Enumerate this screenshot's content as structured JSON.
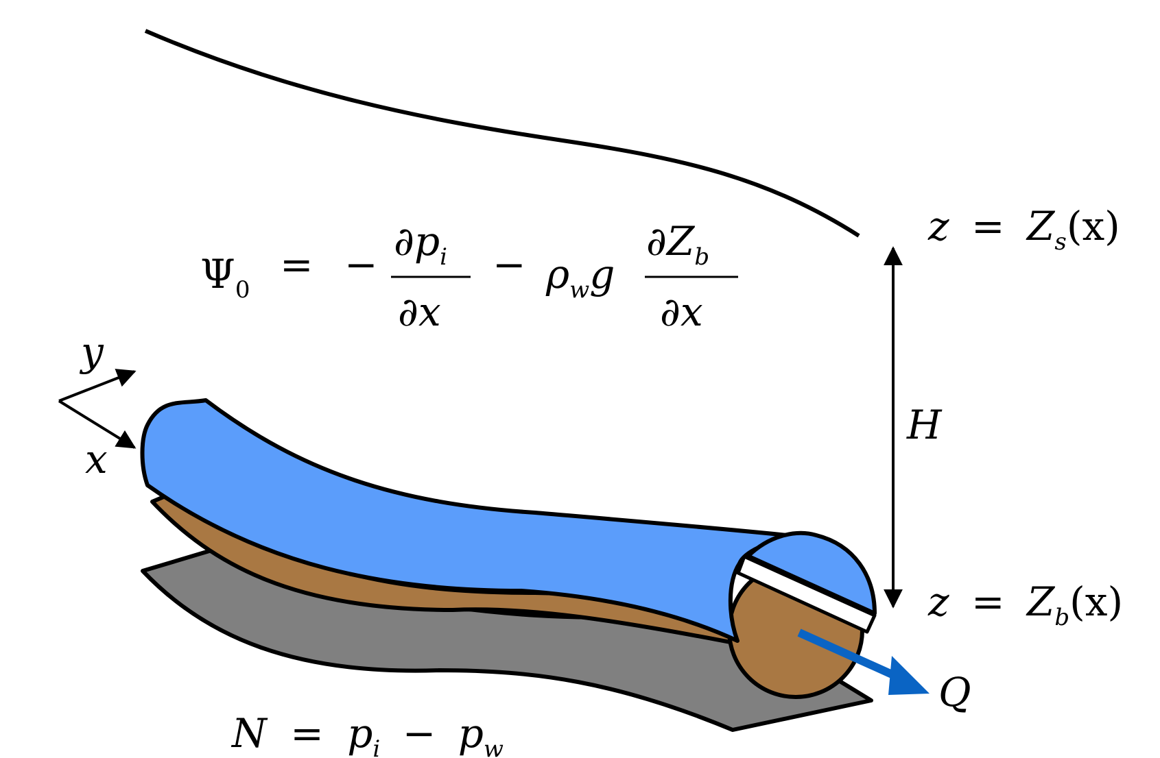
{
  "labels": {
    "surface_eq": {
      "lhs": "z",
      "eq": "=",
      "fn": "Z",
      "sub": "s",
      "arg": "(x)"
    },
    "bed_eq": {
      "lhs": "z",
      "eq": "=",
      "fn": "Z",
      "sub": "b",
      "arg": "(x)"
    },
    "thickness": "H",
    "discharge": "Q",
    "axis_x": "x",
    "axis_y": "y",
    "psi_lhs": "Ψ",
    "psi_lhs_sub": "0",
    "psi_eq": "=",
    "psi_minus1": "−",
    "psi_frac1_num_d": "∂",
    "psi_frac1_num_var": "p",
    "psi_frac1_num_sub": "i",
    "psi_frac1_den": "∂x",
    "psi_minus2": "−",
    "psi_rho": "ρ",
    "psi_rho_sub": "w",
    "psi_g": "g",
    "psi_frac2_num_d": "∂",
    "psi_frac2_num_var": "Z",
    "psi_frac2_num_sub": "b",
    "psi_frac2_den": "∂x",
    "n_lhs": "N",
    "n_eq": "=",
    "n_p1": "p",
    "n_p1_sub": "i",
    "n_minus": "−",
    "n_p2": "p",
    "n_p2_sub": "w"
  },
  "colors": {
    "water": "#5b9dfb",
    "sediment": "#a97843",
    "bed": "#808080",
    "flow_arrow": "#0a64c4",
    "stroke": "#000000"
  },
  "icons": {
    "flow": "flow-arrow-icon",
    "axes": "axes-icon"
  }
}
